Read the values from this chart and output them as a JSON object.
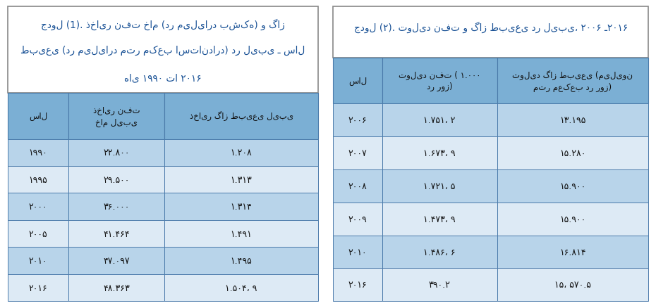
{
  "table1": {
    "title_line1": "جدول (1). ذخایر نفت خام (در میلیارد بشکه) و گاز",
    "title_line2": "طبیعی (در میلیارد متر مکعب استاندارد) در لیبی ـ سال",
    "title_line3": "های ۱۹۹۰ تا ۲۰۱۶",
    "title_bold_part": "جدول (1).",
    "col_headers": [
      "سال",
      "ذخایر نفت\nخام لیبی",
      "ذخایر گاز طبیعی لیبی"
    ],
    "rows": [
      [
        "۱۹۹۰",
        "۲۲.۸۰۰",
        "۱.۲۰۸"
      ],
      [
        "۱۹۹۵",
        "۲۹.۵۰۰",
        "۱.۳۱۳"
      ],
      [
        "۲۰۰۰",
        "۳۶.۰۰۰",
        "۱.۳۱۴"
      ],
      [
        "۲۰۰۵",
        "۴۱.۴۶۴",
        "۱.۴۹۱"
      ],
      [
        "۲۰۱۰",
        "۴۷.۰۹۷",
        "۱.۴۹۵"
      ],
      [
        "۲۰۱۶",
        "۴۸.۳۶۳",
        "۱.۵۰۴، ۹"
      ]
    ]
  },
  "table2": {
    "title_line1": "جدول (۲). تولید نفت و گاز طبیعی در لیبی، ۲۰۰۶ ـ۲۰۱۶",
    "title_bold_part": "جدول (۲).",
    "col_headers": [
      "سال",
      "تولید نفت ( ۱.۰۰۰\nدر روز)",
      "تولید گاز طبیعی (میلیون\nمتر معکعب در روز)"
    ],
    "rows": [
      [
        "۲۰۰۶",
        "۱.۷۵۱، ۲",
        "۱۳.۱۹۵"
      ],
      [
        "۲۰۰۷",
        "۱.۶۷۳، ۹",
        "۱۵.۲۸۰"
      ],
      [
        "۲۰۰۸",
        "۱.۷۲۱، ۵",
        "۱۵.۹۰۰"
      ],
      [
        "۲۰۰۹",
        "۱.۴۷۳، ۹",
        "۱۵.۹۰۰"
      ],
      [
        "۲۰۱۰",
        "۱.۴۸۶، ۶",
        "۱۶.۸۱۴"
      ],
      [
        "۲۰۱۶",
        "۳۹۰.۲",
        "۱۵، ۵۷۰.۵"
      ]
    ]
  },
  "header_color": "#7bafd4",
  "row_color_dark": "#b8d4ea",
  "row_color_light": "#ddeaf5",
  "title_color": "#1a5296",
  "border_color": "#4a7aaa",
  "text_color": "#111111",
  "bg_color": "#ffffff",
  "outer_border_color": "#888888"
}
